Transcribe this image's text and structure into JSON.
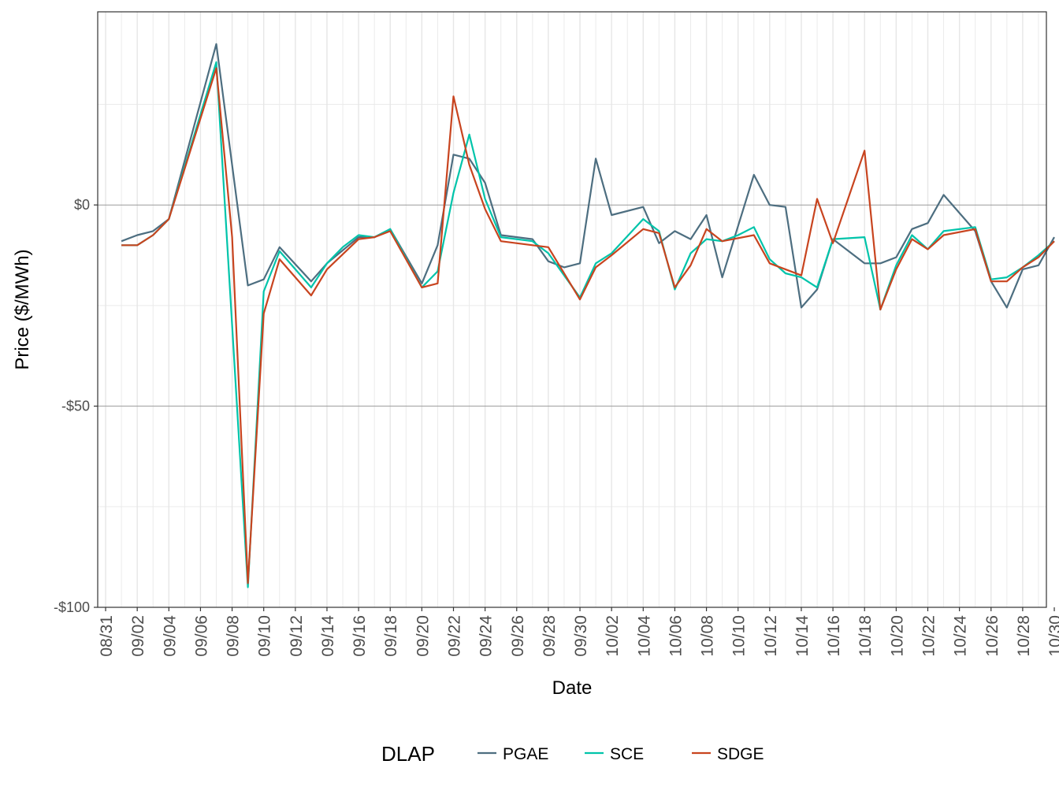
{
  "chart_data": {
    "type": "line",
    "xlabel": "Date",
    "ylabel": "Price ($/MWh)",
    "ylim": [
      -100,
      48
    ],
    "xlim": [
      -0.5,
      59.5
    ],
    "y_ticks": [
      0,
      -50,
      -100
    ],
    "y_tick_labels": [
      "$0",
      "-$50",
      "-$100"
    ],
    "x_tick_positions": [
      0,
      2,
      4,
      6,
      8,
      10,
      12,
      14,
      16,
      18,
      20,
      22,
      24,
      26,
      28,
      30,
      32,
      34,
      36,
      38,
      40,
      42,
      44,
      46,
      48,
      50,
      52,
      54,
      56,
      58,
      60
    ],
    "x_tick_labels": [
      "08/31",
      "09/02",
      "09/04",
      "09/06",
      "09/08",
      "09/10",
      "09/12",
      "09/14",
      "09/16",
      "09/18",
      "09/20",
      "09/22",
      "09/24",
      "09/26",
      "09/28",
      "09/30",
      "10/02",
      "10/04",
      "10/06",
      "10/08",
      "10/10",
      "10/12",
      "10/14",
      "10/16",
      "10/18",
      "10/20",
      "10/22",
      "10/24",
      "10/26",
      "10/28",
      "10/30"
    ],
    "legend": {
      "title": "DLAP",
      "position": "bottom"
    },
    "series": [
      {
        "name": "PGAE",
        "color": "#4d6e80",
        "x": [
          1,
          2,
          3,
          4,
          7,
          9,
          10,
          11,
          13,
          14,
          16,
          17,
          18,
          20,
          21,
          22,
          23,
          24,
          25,
          27,
          28,
          29,
          30,
          31,
          32,
          34,
          35,
          36,
          37,
          38,
          39,
          41,
          42,
          43,
          44,
          45,
          46,
          48,
          49,
          50,
          51,
          52,
          53,
          55,
          56,
          57,
          58,
          59,
          60
        ],
        "y": [
          -9,
          -7.5,
          -6.5,
          -3.5,
          40,
          -20,
          -18.5,
          -10.5,
          -19,
          -14.5,
          -8,
          -8,
          -6,
          -19.5,
          -10,
          12.5,
          11.5,
          5.5,
          -7.5,
          -8.5,
          -14,
          -15.5,
          -14.5,
          11.5,
          -2.5,
          -0.5,
          -9.5,
          -6.5,
          -8.5,
          -2.5,
          -18,
          7.5,
          0,
          -0.5,
          -25.5,
          -21,
          -8.5,
          -14.5,
          -14.5,
          -13,
          -6,
          -4.5,
          2.5,
          -6.5,
          -19,
          -25.5,
          -16,
          -15,
          -8
        ]
      },
      {
        "name": "SCE",
        "color": "#00c4aa",
        "x": [
          1,
          2,
          3,
          4,
          7,
          9,
          10,
          11,
          13,
          14,
          15,
          16,
          17,
          18,
          20,
          21,
          22,
          23,
          24,
          25,
          27,
          28,
          30,
          31,
          32,
          34,
          35,
          36,
          37,
          38,
          39,
          40,
          41,
          42,
          43,
          44,
          45,
          46,
          48,
          49,
          50,
          51,
          52,
          53,
          55,
          56,
          57,
          58,
          59,
          60
        ],
        "y": [
          -10,
          -10,
          -7.5,
          -3.5,
          35.5,
          -95,
          -21.5,
          -11.5,
          -20.5,
          -14.5,
          -10.5,
          -7.5,
          -8,
          -6,
          -20.5,
          -16.5,
          3,
          17.5,
          1.5,
          -8,
          -9,
          -12,
          -23,
          -14.5,
          -12,
          -3.5,
          -6.5,
          -21,
          -12,
          -8.5,
          -9,
          -7.5,
          -5.5,
          -13.5,
          -17,
          -18,
          -20.5,
          -8.5,
          -8,
          -26,
          -15,
          -7.5,
          -11,
          -6.5,
          -5.5,
          -18.5,
          -18,
          -15.5,
          -12.5,
          -9
        ]
      },
      {
        "name": "SDGE",
        "color": "#c8441f",
        "x": [
          1,
          2,
          3,
          4,
          7,
          8,
          9,
          10,
          11,
          13,
          14,
          16,
          17,
          18,
          20,
          21,
          22,
          23,
          24,
          25,
          27,
          28,
          30,
          31,
          32,
          34,
          35,
          36,
          37,
          38,
          39,
          41,
          42,
          44,
          45,
          46,
          48,
          49,
          50,
          51,
          52,
          53,
          55,
          56,
          57,
          58,
          59,
          60
        ],
        "y": [
          -10,
          -10,
          -7.5,
          -3.5,
          34,
          -8,
          -94,
          -27,
          -13.5,
          -22.5,
          -16,
          -8.5,
          -8,
          -6.5,
          -20.5,
          -19.5,
          27,
          10,
          -1,
          -9,
          -10,
          -10.5,
          -23.5,
          -15.5,
          -12.5,
          -6,
          -7,
          -20.5,
          -15,
          -6,
          -9,
          -7.5,
          -14.5,
          -17.5,
          1.5,
          -9.5,
          13.5,
          -26,
          -16,
          -8.5,
          -11,
          -7.5,
          -6,
          -19,
          -19,
          -15.5,
          -13,
          -9
        ]
      }
    ]
  }
}
